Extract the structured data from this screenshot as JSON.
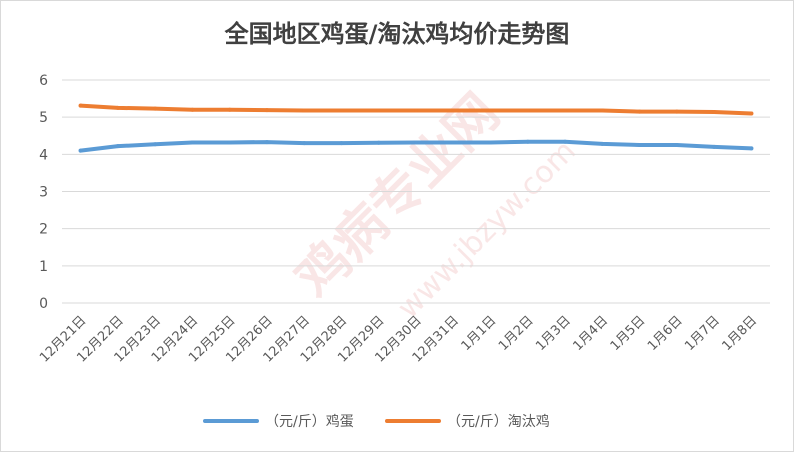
{
  "chart_data": {
    "type": "line",
    "title": "全国地区鸡蛋/淘汰鸡均价走势图",
    "xlabel": "",
    "ylabel": "",
    "ylim": [
      0,
      6
    ],
    "yticks": [
      "0",
      "1",
      "2",
      "3",
      "4",
      "5",
      "6"
    ],
    "grid": true,
    "legend_position": "bottom",
    "categories": [
      "12月21日",
      "12月22日",
      "12月23日",
      "12月24日",
      "12月25日",
      "12月26日",
      "12月27日",
      "12月28日",
      "12月29日",
      "12月30日",
      "12月31日",
      "1月1日",
      "1月2日",
      "1月3日",
      "1月4日",
      "1月5日",
      "1月6日",
      "1月7日",
      "1月8日"
    ],
    "series": [
      {
        "name": "（元/斤）鸡蛋",
        "color": "#5b9bd5",
        "values": [
          4.1,
          4.22,
          4.27,
          4.32,
          4.32,
          4.33,
          4.3,
          4.3,
          4.31,
          4.32,
          4.32,
          4.32,
          4.34,
          4.34,
          4.28,
          4.25,
          4.25,
          4.2,
          4.16
        ]
      },
      {
        "name": "（元/斤）淘汰鸡",
        "color": "#ed7d31",
        "values": [
          5.31,
          5.25,
          5.23,
          5.2,
          5.2,
          5.19,
          5.18,
          5.18,
          5.18,
          5.18,
          5.18,
          5.18,
          5.18,
          5.18,
          5.18,
          5.15,
          5.15,
          5.14,
          5.1
        ]
      }
    ]
  },
  "watermark": {
    "main": "鸡病专业网",
    "url": "www.jbzyw.com"
  },
  "colors": {
    "gridline": "#d9d9d9",
    "axis_text": "#595959",
    "title_text": "#404040",
    "watermark": "#f2c9c9"
  }
}
